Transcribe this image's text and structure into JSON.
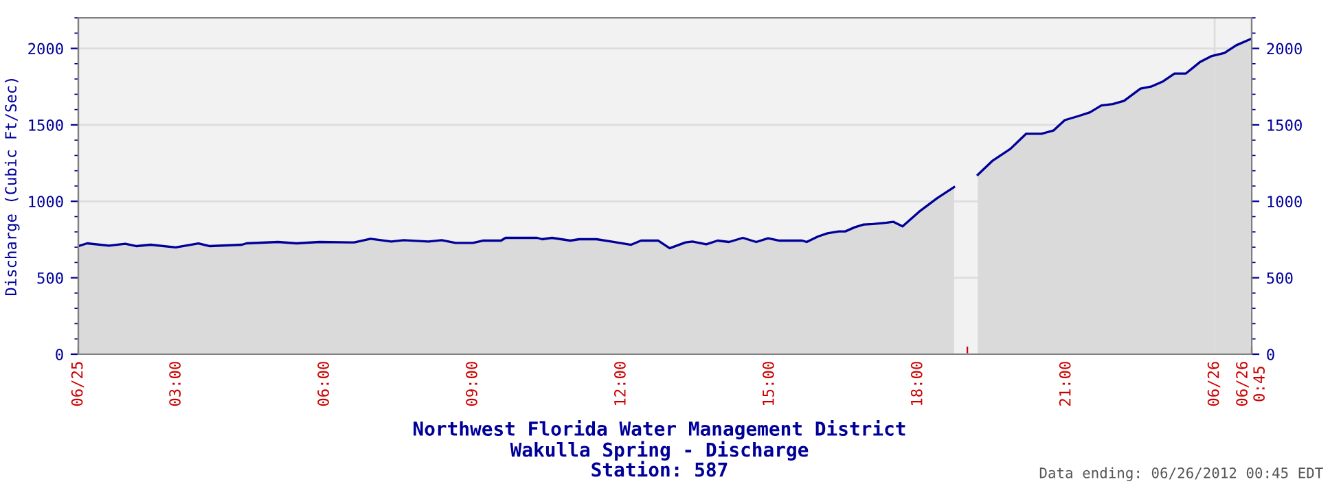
{
  "chart_data": {
    "type": "area",
    "title": "Northwest Florida Water Management District\nWakulla Spring - Discharge\nStation: 587",
    "ylabel": "Discharge (Cubic Ft/Sec)",
    "annotations": [
      "Data ending: 06/26/2012 00:45 EDT"
    ],
    "x": [
      1.02,
      1.2,
      1.64,
      1.97,
      2.2,
      2.48,
      2.99,
      3.45,
      3.68,
      4.33,
      4.42,
      5.06,
      5.43,
      5.9,
      6.6,
      6.93,
      7.35,
      7.6,
      8.1,
      8.37,
      8.65,
      9.0,
      9.2,
      9.57,
      9.66,
      10.3,
      10.4,
      10.6,
      10.97,
      11.15,
      11.5,
      11.8,
      12.2,
      12.4,
      12.75,
      12.98,
      13.3,
      13.44,
      13.72,
      13.95,
      14.18,
      14.46,
      14.73,
      14.97,
      15.2,
      15.66,
      15.75,
      15.98,
      16.17,
      16.4,
      16.53,
      16.72,
      16.9,
      17.09,
      17.37,
      17.5,
      17.69,
      18.02,
      18.39,
      18.73,
      18.97,
      19.21,
      19.5,
      19.87,
      20.19,
      20.5,
      20.74,
      20.97,
      21.25,
      21.48,
      21.71,
      21.94,
      22.17,
      22.5,
      22.73,
      22.96,
      23.19,
      23.42,
      23.7,
      23.93,
      24.2,
      24.44,
      24.72
    ],
    "series": [
      {
        "color": "#000099",
        "values": [
          707,
          725,
          710,
          722,
          707,
          716,
          699,
          725,
          707,
          716,
          725,
          734,
          725,
          734,
          731,
          755,
          737,
          746,
          737,
          746,
          728,
          728,
          743,
          743,
          761,
          761,
          752,
          761,
          743,
          752,
          752,
          737,
          716,
          743,
          743,
          693,
          731,
          737,
          719,
          743,
          734,
          761,
          734,
          758,
          743,
          743,
          734,
          770,
          791,
          803,
          803,
          830,
          848,
          851,
          860,
          866,
          836,
          931,
          1021,
          1093,
          null,
          1173,
          1263,
          1343,
          1442,
          1442,
          1463,
          1531,
          1558,
          1582,
          1627,
          1636,
          1657,
          1737,
          1752,
          1785,
          1836,
          1836,
          1910,
          1949,
          1970,
          2021,
          2060
        ]
      }
    ],
    "xlim": [
      1.02,
      24.75
    ],
    "xticks": [
      {
        "value": 1.02,
        "label": "06/25"
      },
      {
        "value": 2,
        "label": null
      },
      {
        "value": 3,
        "label": "03:00"
      },
      {
        "value": 4,
        "label": null
      },
      {
        "value": 5,
        "label": null
      },
      {
        "value": 6,
        "label": "06:00"
      },
      {
        "value": 7,
        "label": null
      },
      {
        "value": 8,
        "label": null
      },
      {
        "value": 9,
        "label": "09:00"
      },
      {
        "value": 10,
        "label": null
      },
      {
        "value": 11,
        "label": null
      },
      {
        "value": 12,
        "label": "12:00"
      },
      {
        "value": 13,
        "label": null
      },
      {
        "value": 14,
        "label": null
      },
      {
        "value": 15,
        "label": "15:00"
      },
      {
        "value": 16,
        "label": null
      },
      {
        "value": 17,
        "label": null
      },
      {
        "value": 18,
        "label": "18:00"
      },
      {
        "value": 19,
        "label": null
      },
      {
        "value": 20,
        "label": null
      },
      {
        "value": 21,
        "label": "21:00"
      },
      {
        "value": 22,
        "label": null
      },
      {
        "value": 23,
        "label": null
      },
      {
        "value": 24,
        "label": "06/26"
      },
      {
        "value": 24.75,
        "label": "06/26\n0:45"
      }
    ],
    "ylim": [
      0,
      2200
    ],
    "yticks": [
      0,
      500,
      1000,
      1500,
      2000
    ],
    "y2lim": [
      0,
      2200
    ],
    "y2ticks": [
      0,
      500,
      1000,
      1500,
      2000
    ],
    "ref_lines": [
      {
        "axis": "x",
        "value": 24,
        "label": null,
        "color": "#dddddd"
      }
    ],
    "grid": "y",
    "marker": "none",
    "line_style": "solid"
  }
}
